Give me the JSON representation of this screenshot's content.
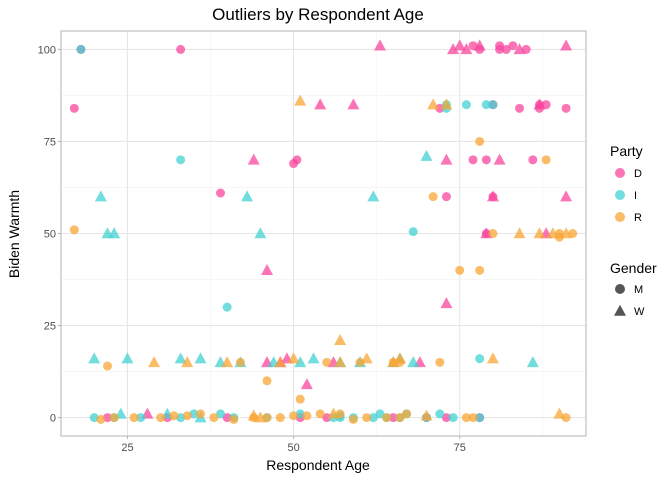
{
  "chart_data": {
    "type": "scatter",
    "title": "Outliers by Respondent Age",
    "xlabel": "Respondent Age",
    "ylabel": "Biden Warmth",
    "xlim": [
      15,
      94
    ],
    "ylim": [
      -5,
      105
    ],
    "xticks": [
      25,
      50,
      75
    ],
    "yticks": [
      0,
      25,
      50,
      75,
      100
    ],
    "xminor": [
      37.5,
      62.5,
      87.5
    ],
    "yminor": [
      12.5,
      37.5,
      62.5,
      87.5
    ],
    "grid": true,
    "legend": {
      "placement": "right",
      "party_title": "Party",
      "gender_title": "Gender",
      "party": [
        {
          "label": "D",
          "color": "#f8469e"
        },
        {
          "label": "I",
          "color": "#41d2d2"
        },
        {
          "label": "R",
          "color": "#f9a534"
        }
      ],
      "gender": [
        {
          "label": "M",
          "shape": "circle"
        },
        {
          "label": "W",
          "shape": "triangle"
        }
      ]
    },
    "series": [
      {
        "party": "D",
        "gender": "M",
        "points": [
          [
            18,
            100
          ],
          [
            17,
            84
          ],
          [
            33,
            100
          ],
          [
            39,
            61
          ],
          [
            50,
            69
          ],
          [
            50.5,
            70
          ],
          [
            72,
            84
          ],
          [
            73,
            60
          ],
          [
            77,
            70
          ],
          [
            78,
            0
          ],
          [
            79,
            50
          ],
          [
            80,
            60
          ],
          [
            81,
            101
          ],
          [
            81,
            100
          ],
          [
            82,
            100
          ],
          [
            83,
            101
          ],
          [
            85,
            100
          ],
          [
            86,
            70
          ],
          [
            87,
            84
          ],
          [
            87,
            85
          ],
          [
            88,
            85
          ],
          [
            91,
            84
          ],
          [
            22,
            0
          ],
          [
            31,
            0
          ],
          [
            40,
            0
          ],
          [
            51,
            0
          ],
          [
            55,
            0
          ],
          [
            65,
            0
          ],
          [
            70,
            0
          ],
          [
            73,
            0
          ],
          [
            78,
            100
          ],
          [
            77,
            101
          ],
          [
            79,
            70
          ],
          [
            80,
            85
          ],
          [
            84,
            84
          ]
        ]
      },
      {
        "party": "D",
        "gender": "W",
        "points": [
          [
            28,
            1
          ],
          [
            44,
            70
          ],
          [
            46,
            40
          ],
          [
            46,
            15
          ],
          [
            48,
            15
          ],
          [
            49,
            16
          ],
          [
            52,
            9
          ],
          [
            54,
            85
          ],
          [
            59,
            85
          ],
          [
            63,
            101
          ],
          [
            73,
            31
          ],
          [
            73,
            70
          ],
          [
            74,
            100
          ],
          [
            75,
            101
          ],
          [
            76,
            100
          ],
          [
            78,
            101
          ],
          [
            80,
            60
          ],
          [
            81,
            70
          ],
          [
            84,
            100
          ],
          [
            87,
            85
          ],
          [
            88,
            50
          ],
          [
            91,
            60
          ],
          [
            91,
            101
          ],
          [
            56,
            15
          ],
          [
            69,
            15
          ],
          [
            79,
            50
          ]
        ]
      },
      {
        "party": "I",
        "gender": "M",
        "points": [
          [
            18,
            100
          ],
          [
            20,
            0
          ],
          [
            27,
            0
          ],
          [
            33,
            70
          ],
          [
            33,
            0
          ],
          [
            35,
            1
          ],
          [
            39,
            1
          ],
          [
            40,
            30
          ],
          [
            41,
            0
          ],
          [
            51,
            1
          ],
          [
            56,
            0
          ],
          [
            57,
            0
          ],
          [
            59,
            0
          ],
          [
            62,
            0
          ],
          [
            63,
            1
          ],
          [
            67,
            1
          ],
          [
            70,
            0
          ],
          [
            72,
            1
          ],
          [
            73,
            85
          ],
          [
            73,
            84
          ],
          [
            76,
            85
          ],
          [
            78,
            16
          ],
          [
            79,
            85
          ],
          [
            80,
            85
          ],
          [
            78,
            0
          ],
          [
            74,
            0
          ],
          [
            66,
            0
          ],
          [
            64,
            0
          ],
          [
            46,
            0
          ],
          [
            23,
            0
          ],
          [
            57,
            0.5
          ],
          [
            68,
            50.5
          ]
        ]
      },
      {
        "party": "I",
        "gender": "W",
        "points": [
          [
            20,
            16
          ],
          [
            21,
            60
          ],
          [
            22,
            50
          ],
          [
            23,
            50
          ],
          [
            25,
            16
          ],
          [
            33,
            16
          ],
          [
            36,
            16
          ],
          [
            39,
            15
          ],
          [
            42,
            15
          ],
          [
            43,
            60
          ],
          [
            45,
            50
          ],
          [
            47,
            15
          ],
          [
            51,
            15
          ],
          [
            53,
            16
          ],
          [
            57,
            15
          ],
          [
            60,
            15
          ],
          [
            62,
            60
          ],
          [
            65,
            15
          ],
          [
            66,
            16
          ],
          [
            68,
            15
          ],
          [
            70,
            71
          ],
          [
            86,
            15
          ],
          [
            24,
            1
          ],
          [
            31,
            1
          ],
          [
            36,
            0
          ]
        ]
      },
      {
        "party": "R",
        "gender": "M",
        "points": [
          [
            17,
            51
          ],
          [
            21,
            -0.5
          ],
          [
            22,
            14
          ],
          [
            23,
            0
          ],
          [
            26,
            0
          ],
          [
            30,
            0
          ],
          [
            32,
            0.5
          ],
          [
            34,
            0.5
          ],
          [
            36,
            1
          ],
          [
            38,
            0
          ],
          [
            41,
            -0.5
          ],
          [
            42,
            15
          ],
          [
            44,
            0
          ],
          [
            46,
            10
          ],
          [
            46,
            0
          ],
          [
            48,
            0
          ],
          [
            50,
            0.5
          ],
          [
            51,
            5
          ],
          [
            52,
            0.5
          ],
          [
            54,
            1
          ],
          [
            55,
            15
          ],
          [
            57,
            1
          ],
          [
            59,
            -0.5
          ],
          [
            60,
            15
          ],
          [
            61,
            0
          ],
          [
            64,
            0
          ],
          [
            66,
            0
          ],
          [
            66,
            15
          ],
          [
            67,
            1
          ],
          [
            71,
            60
          ],
          [
            72,
            15
          ],
          [
            75,
            40
          ],
          [
            76,
            0
          ],
          [
            77,
            0
          ],
          [
            78,
            75
          ],
          [
            78,
            40
          ],
          [
            80,
            50
          ],
          [
            88,
            70
          ],
          [
            90,
            50
          ],
          [
            90,
            49
          ],
          [
            91,
            0
          ],
          [
            92,
            50
          ],
          [
            65,
            15
          ]
        ]
      },
      {
        "party": "R",
        "gender": "W",
        "points": [
          [
            29,
            15
          ],
          [
            34,
            15
          ],
          [
            40,
            15
          ],
          [
            44,
            0.5
          ],
          [
            48,
            15
          ],
          [
            50,
            16
          ],
          [
            51,
            86
          ],
          [
            57,
            21
          ],
          [
            57,
            15
          ],
          [
            61,
            16
          ],
          [
            65,
            15
          ],
          [
            66,
            16
          ],
          [
            70,
            0.5
          ],
          [
            71,
            85
          ],
          [
            80,
            16
          ],
          [
            84,
            50
          ],
          [
            87,
            50
          ],
          [
            89,
            50
          ],
          [
            90,
            1
          ],
          [
            91,
            50
          ],
          [
            73,
            85
          ],
          [
            45,
            0
          ],
          [
            56,
            1
          ]
        ]
      }
    ]
  }
}
